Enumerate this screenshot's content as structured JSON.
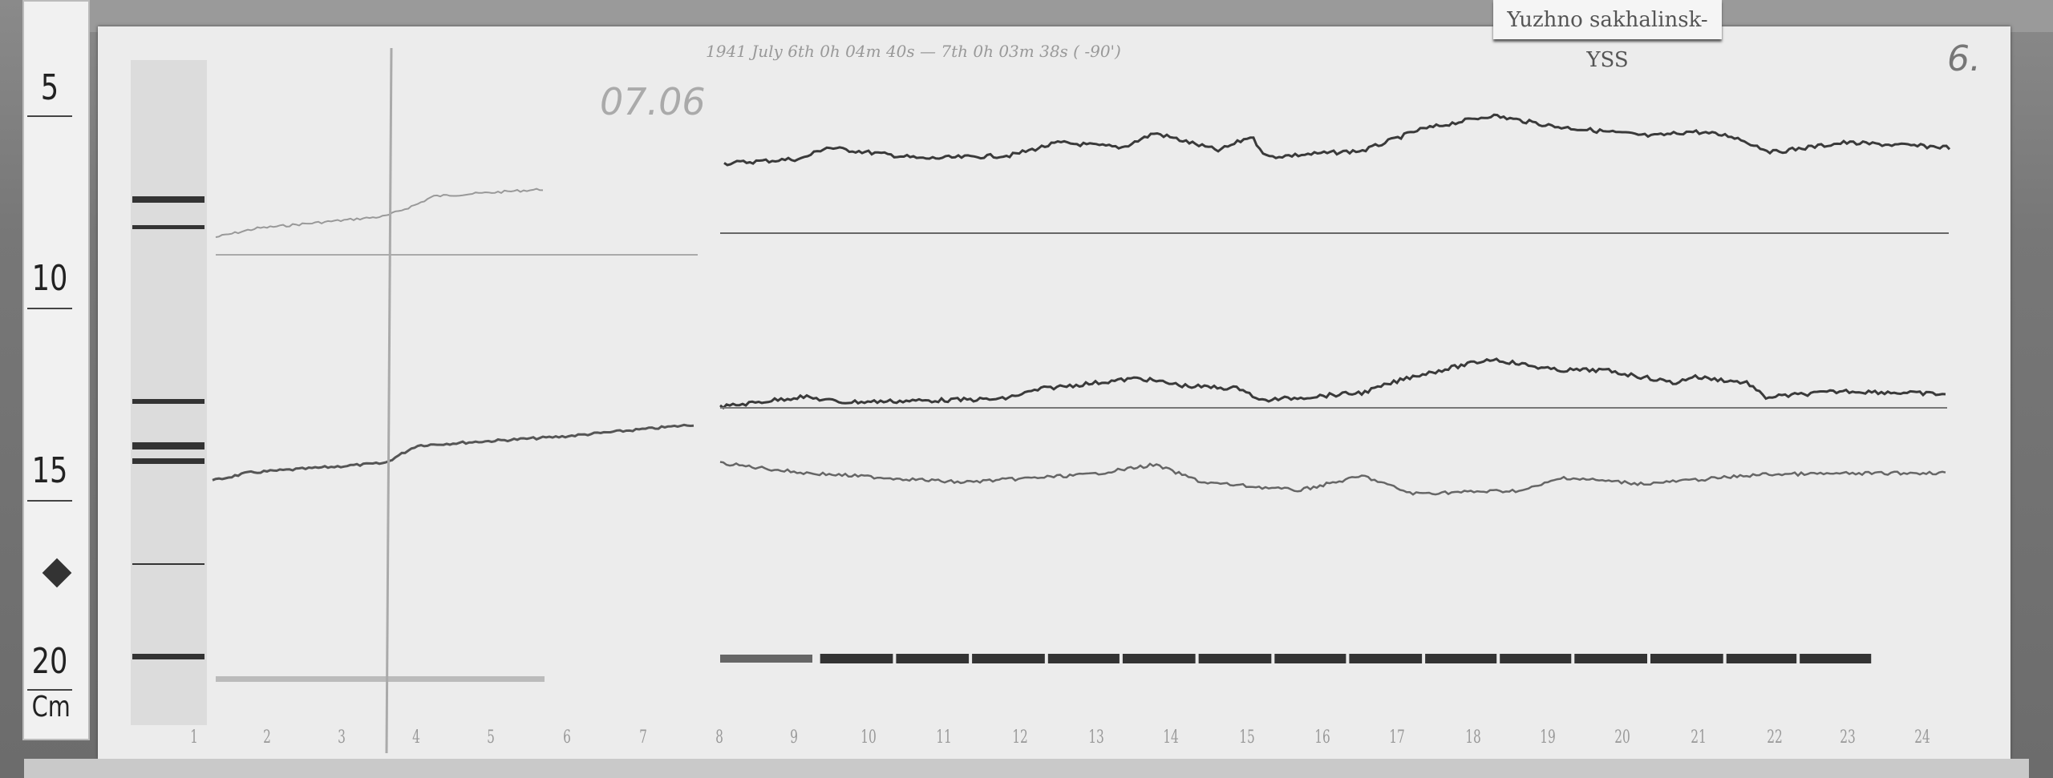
{
  "station_label": "Yuzhno sakhalinsk-YSS",
  "page_number": "6.",
  "header_note": "1941 July 6th 0h 04m 40s — 7th 0h 03m 38s ( -90')",
  "date_note": "07.06",
  "ruler": {
    "labels": [
      "5",
      "10",
      "15",
      "20"
    ],
    "unit": "Cm"
  },
  "hour_labels": [
    "1",
    "2",
    "3",
    "4",
    "5",
    "6",
    "7",
    "8",
    "9",
    "10",
    "11",
    "12",
    "13",
    "14",
    "15",
    "16",
    "17",
    "18",
    "19",
    "20",
    "21",
    "22",
    "23",
    "24"
  ],
  "colors": {
    "paper": "#ececec",
    "trace": "#3a3a3a",
    "faint_trace": "#999999"
  }
}
